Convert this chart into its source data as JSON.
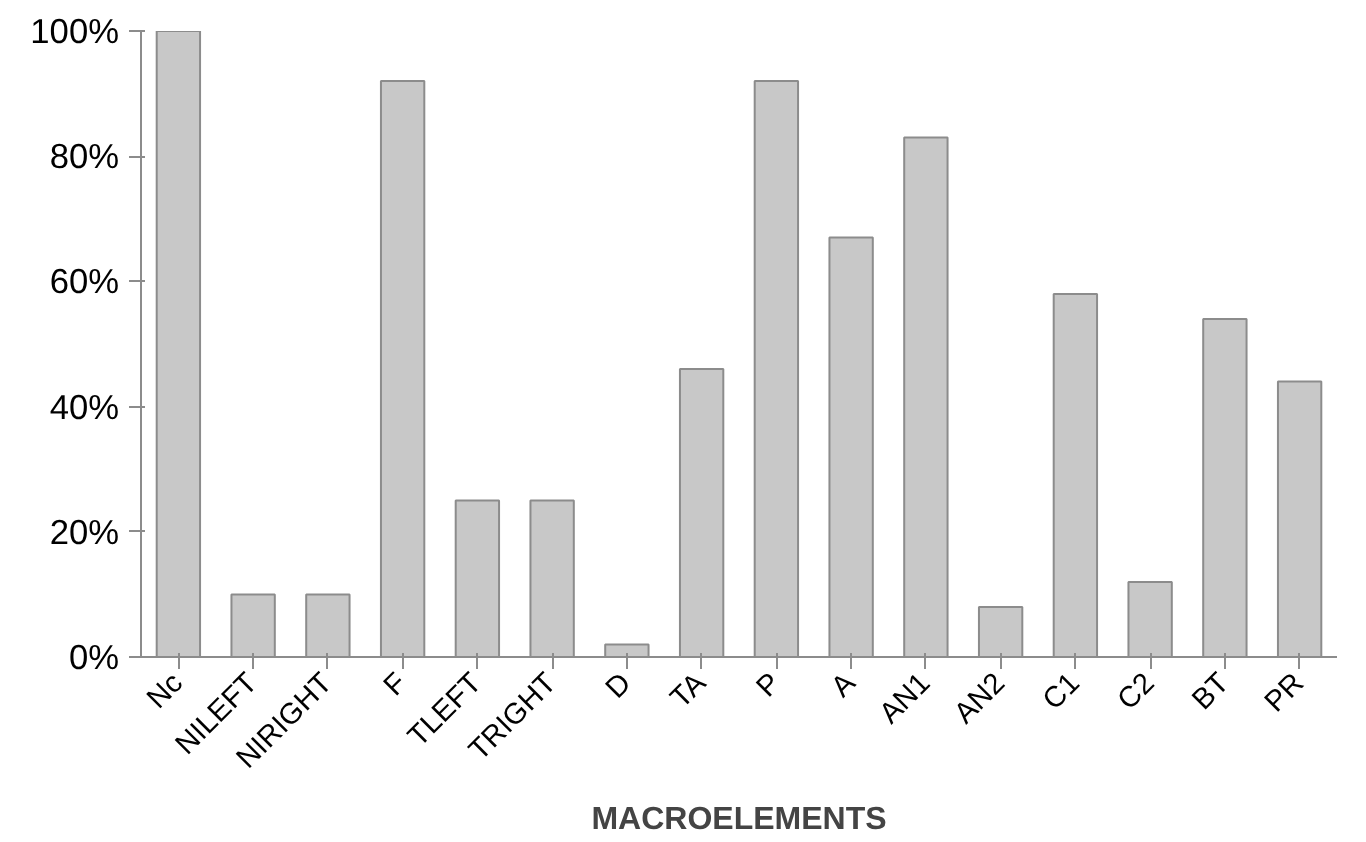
{
  "chart_data": {
    "type": "bar",
    "xlabel": "MACROELEMENTS",
    "categories": [
      "Nc",
      "NILEFT",
      "NIRIGHT",
      "F",
      "TLEFT",
      "TRIGHT",
      "D",
      "TA",
      "P",
      "A",
      "AN1",
      "AN2",
      "C1",
      "C2",
      "BT",
      "PR"
    ],
    "values": [
      100,
      10,
      10,
      92,
      25,
      25,
      2,
      46,
      92,
      67,
      83,
      8,
      58,
      12,
      54,
      44
    ],
    "color": "#c8c8c8",
    "ylim": [
      0,
      100
    ],
    "yticks": [
      {
        "value": 0,
        "label": "0%"
      },
      {
        "value": 20,
        "label": "20%"
      },
      {
        "value": 40,
        "label": "40%"
      },
      {
        "value": 60,
        "label": "60%"
      },
      {
        "value": 80,
        "label": "80%"
      },
      {
        "value": 100,
        "label": "100%"
      }
    ],
    "grid": false
  }
}
